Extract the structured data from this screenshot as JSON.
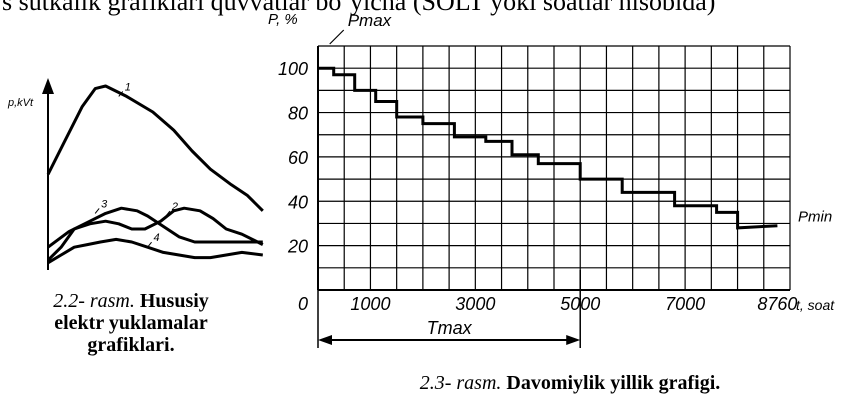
{
  "top_text": "s sutkalik grafiklari quvvatlar bo‘yicha (SOLT yoki soatlar hisobida)",
  "chart_data": [
    {
      "type": "line",
      "ylabel": "p,kVt",
      "series": [
        {
          "name": "1",
          "points": [
            [
              0,
              36
            ],
            [
              6,
              48
            ],
            [
              13,
              62
            ],
            [
              18,
              69
            ],
            [
              22,
              70
            ],
            [
              30,
              66
            ],
            [
              40,
              60
            ],
            [
              48,
              53
            ],
            [
              55,
              45
            ],
            [
              62,
              38
            ],
            [
              70,
              32
            ],
            [
              76,
              28
            ],
            [
              82,
              22
            ]
          ]
        },
        {
          "name": "2",
          "points": [
            [
              0,
              3
            ],
            [
              5,
              8
            ],
            [
              10,
              15
            ],
            [
              16,
              17
            ],
            [
              22,
              18
            ],
            [
              27,
              17
            ],
            [
              32,
              15
            ],
            [
              37,
              15
            ],
            [
              43,
              18
            ],
            [
              48,
              22
            ],
            [
              52,
              23
            ],
            [
              58,
              22
            ],
            [
              63,
              19
            ],
            [
              68,
              15
            ],
            [
              74,
              13
            ],
            [
              80,
              10
            ],
            [
              82,
              9
            ]
          ]
        },
        {
          "name": "3",
          "points": [
            [
              0,
              8
            ],
            [
              8,
              14
            ],
            [
              16,
              18
            ],
            [
              22,
              21
            ],
            [
              28,
              23
            ],
            [
              34,
              22
            ],
            [
              38,
              20
            ],
            [
              44,
              16
            ],
            [
              50,
              12
            ],
            [
              56,
              10
            ],
            [
              62,
              10
            ],
            [
              68,
              10
            ],
            [
              74,
              10
            ],
            [
              82,
              10
            ]
          ]
        },
        {
          "name": "4",
          "points": [
            [
              0,
              2
            ],
            [
              5,
              5
            ],
            [
              10,
              8
            ],
            [
              15,
              9
            ],
            [
              20,
              10
            ],
            [
              26,
              11
            ],
            [
              32,
              10
            ],
            [
              38,
              8
            ],
            [
              44,
              6
            ],
            [
              50,
              5
            ],
            [
              56,
              4
            ],
            [
              62,
              4
            ],
            [
              68,
              5
            ],
            [
              74,
              6
            ],
            [
              82,
              5
            ]
          ]
        }
      ]
    },
    {
      "type": "line",
      "ylabel": "P, %",
      "xlabel": "t, soat",
      "xlim": [
        0,
        9000
      ],
      "ylim": [
        0,
        110
      ],
      "yticks": [
        0,
        20,
        40,
        60,
        80,
        100
      ],
      "xticks": [
        1000,
        3000,
        5000,
        7000,
        8760
      ],
      "grid": true,
      "series": [
        {
          "name": "",
          "x": [
            0,
            300,
            300,
            700,
            700,
            1100,
            1100,
            1500,
            1500,
            2000,
            2000,
            2600,
            2600,
            3200,
            3200,
            3700,
            3700,
            4200,
            4200,
            5000,
            5000,
            5800,
            5800,
            6800,
            6800,
            7600,
            7600,
            8000,
            8000,
            8760
          ],
          "y": [
            100,
            100,
            97,
            97,
            90,
            90,
            85,
            85,
            78,
            78,
            75,
            75,
            69,
            69,
            67,
            67,
            61,
            61,
            57,
            57,
            50,
            50,
            44,
            44,
            38,
            38,
            35,
            35,
            28,
            29
          ]
        }
      ],
      "annotations": {
        "pmax": "Pmax",
        "pmin": "Pmin",
        "tmax": "Tmax",
        "tmax_end": 5000
      }
    }
  ],
  "captions": {
    "left_prefix": "2.2-",
    "left_word": "rasm.",
    "left_title_1": "Hususiy",
    "left_title_2": "elektr  yuklamalar",
    "left_title_3": "grafiklari.",
    "right_prefix": "2.3-",
    "right_word": "rasm.",
    "right_title": "Davomiylik yillik grafigi."
  }
}
